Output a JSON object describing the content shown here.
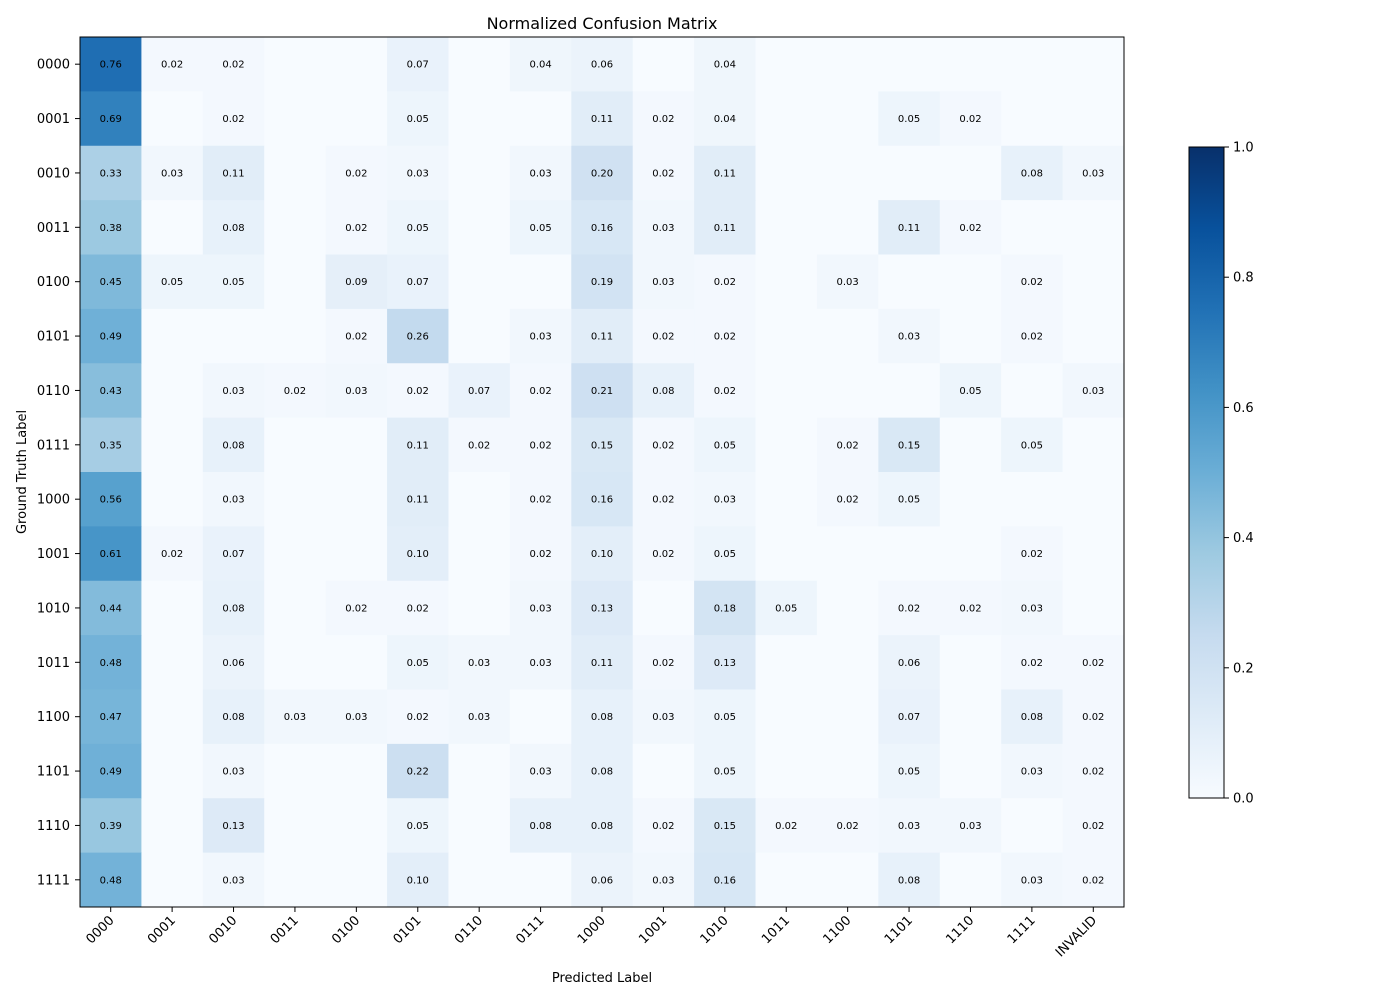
{
  "chart_data": {
    "type": "heatmap",
    "title": "Normalized Confusion Matrix",
    "xlabel": "Predicted Label",
    "ylabel": "Ground Truth Label",
    "x_categories": [
      "0000",
      "0001",
      "0010",
      "0011",
      "0100",
      "0101",
      "0110",
      "0111",
      "1000",
      "1001",
      "1010",
      "1011",
      "1100",
      "1101",
      "1110",
      "1111",
      "INVALID"
    ],
    "y_categories": [
      "0000",
      "0001",
      "0010",
      "0011",
      "0100",
      "0101",
      "0110",
      "0111",
      "1000",
      "1001",
      "1010",
      "1011",
      "1100",
      "1101",
      "1110",
      "1111"
    ],
    "values": [
      [
        0.76,
        0.02,
        0.02,
        0.0,
        0.0,
        0.07,
        0.0,
        0.04,
        0.06,
        0.0,
        0.04,
        0.0,
        0.0,
        0.0,
        0.0,
        0.0,
        0.0
      ],
      [
        0.69,
        0.0,
        0.02,
        0.0,
        0.0,
        0.05,
        0.0,
        0.0,
        0.11,
        0.02,
        0.04,
        0.0,
        0.0,
        0.05,
        0.02,
        0.0,
        0.0
      ],
      [
        0.33,
        0.03,
        0.11,
        0.0,
        0.02,
        0.03,
        0.0,
        0.03,
        0.2,
        0.02,
        0.11,
        0.0,
        0.0,
        0.0,
        0.0,
        0.08,
        0.03
      ],
      [
        0.38,
        0.0,
        0.08,
        0.0,
        0.02,
        0.05,
        0.0,
        0.05,
        0.16,
        0.03,
        0.11,
        0.0,
        0.0,
        0.11,
        0.02,
        0.0,
        0.0
      ],
      [
        0.45,
        0.05,
        0.05,
        0.0,
        0.09,
        0.07,
        0.0,
        0.0,
        0.19,
        0.03,
        0.02,
        0.0,
        0.03,
        0.0,
        0.0,
        0.02,
        0.0
      ],
      [
        0.49,
        0.0,
        0.0,
        0.0,
        0.02,
        0.26,
        0.0,
        0.03,
        0.11,
        0.02,
        0.02,
        0.0,
        0.0,
        0.03,
        0.0,
        0.02,
        0.0
      ],
      [
        0.43,
        0.0,
        0.03,
        0.02,
        0.03,
        0.02,
        0.07,
        0.02,
        0.21,
        0.08,
        0.02,
        0.0,
        0.0,
        0.0,
        0.05,
        0.0,
        0.03
      ],
      [
        0.35,
        0.0,
        0.08,
        0.0,
        0.0,
        0.11,
        0.02,
        0.02,
        0.15,
        0.02,
        0.05,
        0.0,
        0.02,
        0.15,
        0.0,
        0.05,
        0.0
      ],
      [
        0.56,
        0.0,
        0.03,
        0.0,
        0.0,
        0.11,
        0.0,
        0.02,
        0.16,
        0.02,
        0.03,
        0.0,
        0.02,
        0.05,
        0.0,
        0.0,
        0.0
      ],
      [
        0.61,
        0.02,
        0.07,
        0.0,
        0.0,
        0.1,
        0.0,
        0.02,
        0.1,
        0.02,
        0.05,
        0.0,
        0.0,
        0.0,
        0.0,
        0.02,
        0.0
      ],
      [
        0.44,
        0.0,
        0.08,
        0.0,
        0.02,
        0.02,
        0.0,
        0.03,
        0.13,
        0.0,
        0.18,
        0.05,
        0.0,
        0.02,
        0.02,
        0.03,
        0.0
      ],
      [
        0.48,
        0.0,
        0.06,
        0.0,
        0.0,
        0.05,
        0.03,
        0.03,
        0.11,
        0.02,
        0.13,
        0.0,
        0.0,
        0.06,
        0.0,
        0.02,
        0.02
      ],
      [
        0.47,
        0.0,
        0.08,
        0.03,
        0.03,
        0.02,
        0.03,
        0.0,
        0.08,
        0.03,
        0.05,
        0.0,
        0.0,
        0.07,
        0.0,
        0.08,
        0.02
      ],
      [
        0.49,
        0.0,
        0.03,
        0.0,
        0.0,
        0.22,
        0.0,
        0.03,
        0.08,
        0.0,
        0.05,
        0.0,
        0.0,
        0.05,
        0.0,
        0.03,
        0.02
      ],
      [
        0.39,
        0.0,
        0.13,
        0.0,
        0.0,
        0.05,
        0.0,
        0.08,
        0.08,
        0.02,
        0.15,
        0.02,
        0.02,
        0.03,
        0.03,
        0.0,
        0.02
      ],
      [
        0.48,
        0.0,
        0.03,
        0.0,
        0.0,
        0.1,
        0.0,
        0.0,
        0.06,
        0.03,
        0.16,
        0.0,
        0.0,
        0.08,
        0.0,
        0.03,
        0.02
      ]
    ],
    "colorbar": {
      "range": [
        0.0,
        1.0
      ],
      "ticks": [
        "0.0",
        "0.2",
        "0.4",
        "0.6",
        "0.8",
        "1.0"
      ],
      "colormap": "Blues"
    },
    "value_format": "2 decimals; zero cells unlabeled"
  }
}
